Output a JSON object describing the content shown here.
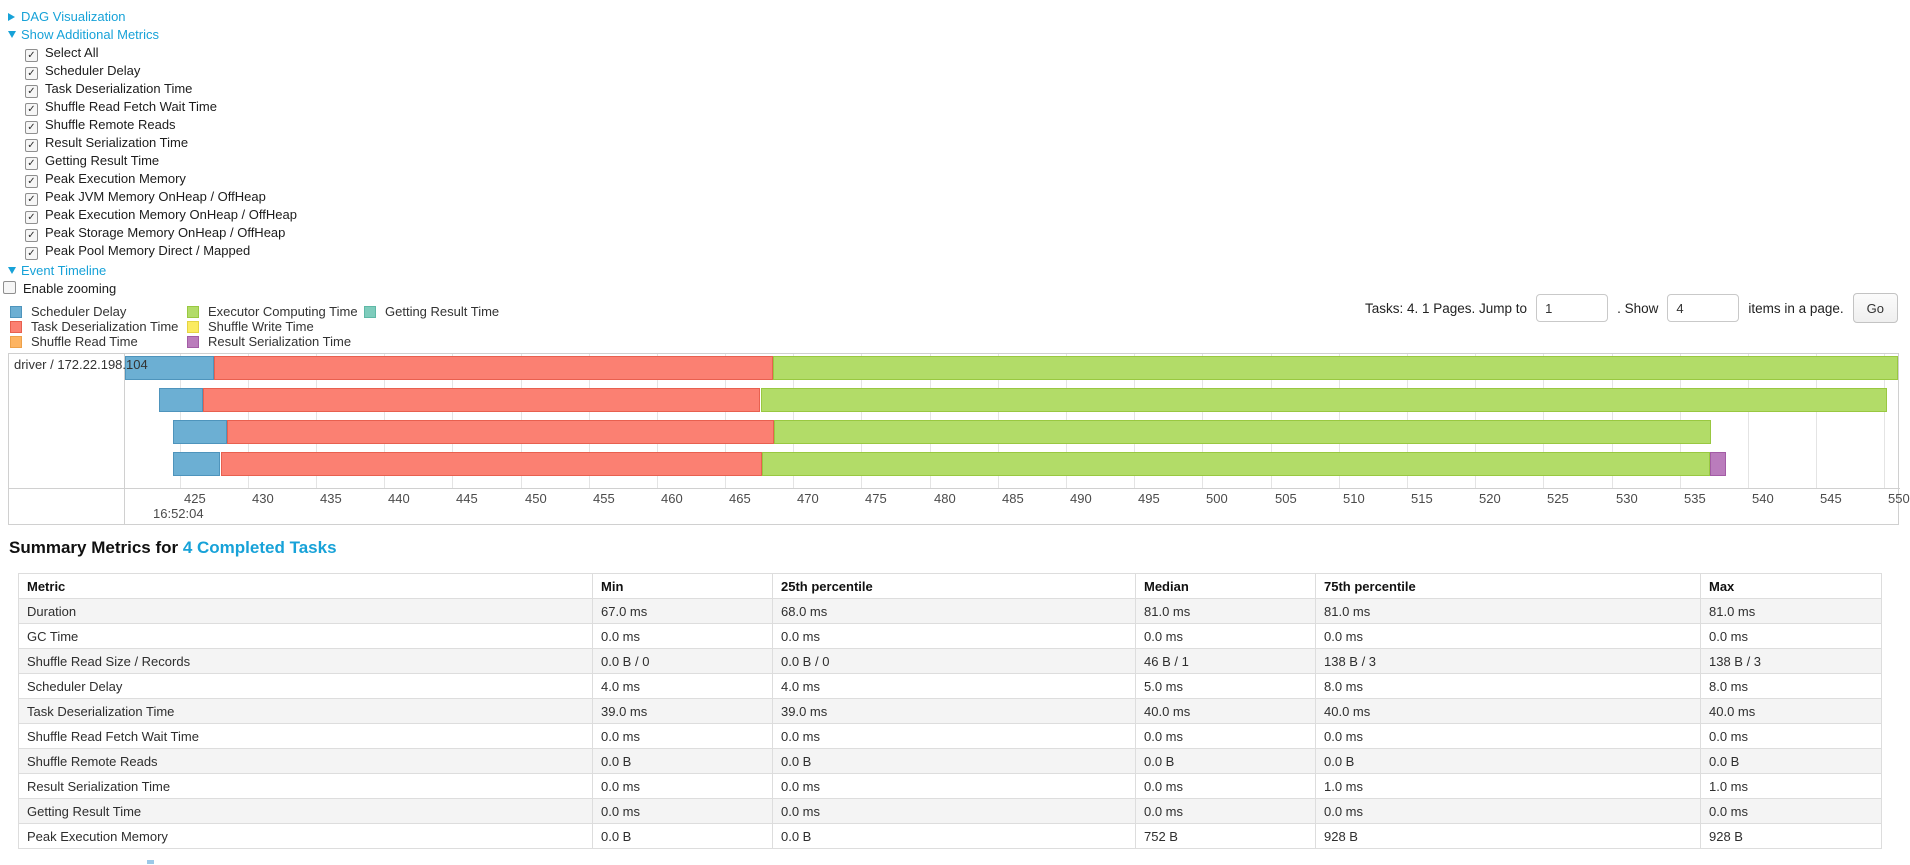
{
  "controls": {
    "dag_link": "DAG Visualization",
    "metrics_link": "Show Additional Metrics",
    "metrics_checkboxes": [
      "Select All",
      "Scheduler Delay",
      "Task Deserialization Time",
      "Shuffle Read Fetch Wait Time",
      "Shuffle Remote Reads",
      "Result Serialization Time",
      "Getting Result Time",
      "Peak Execution Memory",
      "Peak JVM Memory OnHeap / OffHeap",
      "Peak Execution Memory OnHeap / OffHeap",
      "Peak Storage Memory OnHeap / OffHeap",
      "Peak Pool Memory Direct / Mapped"
    ],
    "event_timeline_link": "Event Timeline",
    "enable_zooming_label": "Enable zooming"
  },
  "pagination": {
    "tasks_text": "Tasks: 4. 1 Pages. Jump to",
    "jump_value": "1",
    "show_label": ". Show",
    "show_value": "4",
    "items_label": "items in a page.",
    "go_label": "Go"
  },
  "chart_data": {
    "type": "timeline",
    "group_label": "driver / 172.22.198.104",
    "axis": {
      "min": 421,
      "max": 551,
      "tick_start": 425,
      "tick_step": 5,
      "tick_end": 550,
      "major_label": "16:52:04",
      "grid": true
    },
    "legend": [
      {
        "key": "scheduler_delay",
        "label": "Scheduler Delay",
        "color": "#6CAFD3",
        "border": "#4E94BC"
      },
      {
        "key": "task_deserialization",
        "label": "Task Deserialization Time",
        "color": "#FB8072",
        "border": "#E8604F"
      },
      {
        "key": "shuffle_read",
        "label": "Shuffle Read Time",
        "color": "#FDB462",
        "border": "#EDA14A"
      },
      {
        "key": "executor_computing",
        "label": "Executor Computing Time",
        "color": "#B2DC68",
        "border": "#99C841"
      },
      {
        "key": "shuffle_write",
        "label": "Shuffle Write Time",
        "color": "#FBEB61",
        "border": "#E5D442"
      },
      {
        "key": "result_serialization",
        "label": "Result Serialization Time",
        "color": "#BA7CBC",
        "border": "#A35CA5"
      },
      {
        "key": "getting_result",
        "label": "Getting Result Time",
        "color": "#7ECCBC",
        "border": "#5FB8A6"
      }
    ],
    "tasks": [
      {
        "segments": [
          {
            "key": "scheduler_delay",
            "start": 421.0,
            "end": 427.5
          },
          {
            "key": "task_deserialization",
            "start": 427.5,
            "end": 468.5
          },
          {
            "key": "executor_computing",
            "start": 468.5,
            "end": 551.0
          }
        ]
      },
      {
        "segments": [
          {
            "key": "scheduler_delay",
            "start": 423.5,
            "end": 426.7
          },
          {
            "key": "task_deserialization",
            "start": 426.7,
            "end": 467.6
          },
          {
            "key": "executor_computing",
            "start": 467.6,
            "end": 550.2
          }
        ]
      },
      {
        "segments": [
          {
            "key": "scheduler_delay",
            "start": 424.5,
            "end": 428.5
          },
          {
            "key": "task_deserialization",
            "start": 428.5,
            "end": 468.6
          },
          {
            "key": "executor_computing",
            "start": 468.6,
            "end": 537.3
          }
        ]
      },
      {
        "segments": [
          {
            "key": "scheduler_delay",
            "start": 424.5,
            "end": 428.0
          },
          {
            "key": "task_deserialization",
            "start": 428.0,
            "end": 467.7
          },
          {
            "key": "executor_computing",
            "start": 467.7,
            "end": 537.2
          },
          {
            "key": "result_serialization",
            "start": 537.2,
            "end": 538.4
          }
        ]
      }
    ]
  },
  "summary": {
    "title_prefix": "Summary Metrics for ",
    "title_link": "4 Completed Tasks",
    "columns": [
      "Metric",
      "Min",
      "25th percentile",
      "Median",
      "75th percentile",
      "Max"
    ],
    "rows": [
      [
        "Duration",
        "67.0 ms",
        "68.0 ms",
        "81.0 ms",
        "81.0 ms",
        "81.0 ms"
      ],
      [
        "GC Time",
        "0.0 ms",
        "0.0 ms",
        "0.0 ms",
        "0.0 ms",
        "0.0 ms"
      ],
      [
        "Shuffle Read Size / Records",
        "0.0 B / 0",
        "0.0 B / 0",
        "46 B / 1",
        "138 B / 3",
        "138 B / 3"
      ],
      [
        "Scheduler Delay",
        "4.0 ms",
        "4.0 ms",
        "5.0 ms",
        "8.0 ms",
        "8.0 ms"
      ],
      [
        "Task Deserialization Time",
        "39.0 ms",
        "39.0 ms",
        "40.0 ms",
        "40.0 ms",
        "40.0 ms"
      ],
      [
        "Shuffle Read Fetch Wait Time",
        "0.0 ms",
        "0.0 ms",
        "0.0 ms",
        "0.0 ms",
        "0.0 ms"
      ],
      [
        "Shuffle Remote Reads",
        "0.0 B",
        "0.0 B",
        "0.0 B",
        "0.0 B",
        "0.0 B"
      ],
      [
        "Result Serialization Time",
        "0.0 ms",
        "0.0 ms",
        "0.0 ms",
        "1.0 ms",
        "1.0 ms"
      ],
      [
        "Getting Result Time",
        "0.0 ms",
        "0.0 ms",
        "0.0 ms",
        "0.0 ms",
        "0.0 ms"
      ],
      [
        "Peak Execution Memory",
        "0.0 B",
        "0.0 B",
        "752 B",
        "928 B",
        "928 B"
      ]
    ]
  }
}
